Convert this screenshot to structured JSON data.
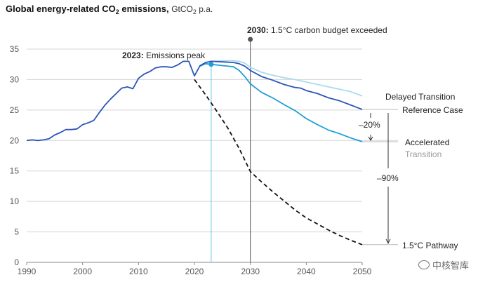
{
  "chart_data": {
    "type": "line",
    "title": "Global energy-related CO",
    "title_sub": "2",
    "title_tail": " emissions,",
    "units_prefix": "GtCO",
    "units_sub": "2",
    "units_tail": " p.a.",
    "xlim": [
      1990,
      2050
    ],
    "ylim": [
      0,
      35
    ],
    "x_ticks": [
      "1990",
      "2000",
      "2010",
      "2020",
      "2030",
      "2040",
      "2050"
    ],
    "y_ticks": [
      "0",
      "5",
      "10",
      "15",
      "20",
      "25",
      "30",
      "35"
    ],
    "grid": "horizontal",
    "historical": {
      "x": [
        1990,
        1991,
        1992,
        1993,
        1994,
        1995,
        1996,
        1997,
        1998,
        1999,
        2000,
        2001,
        2002,
        2003,
        2004,
        2005,
        2006,
        2007,
        2008,
        2009,
        2010,
        2011,
        2012,
        2013,
        2014,
        2015,
        2016,
        2017,
        2018,
        2019,
        2020,
        2021,
        2022
      ],
      "y": [
        20.0,
        20.1,
        20.0,
        20.1,
        20.3,
        20.9,
        21.3,
        21.8,
        21.8,
        21.9,
        22.6,
        22.9,
        23.3,
        24.6,
        25.8,
        26.8,
        27.7,
        28.6,
        28.8,
        28.5,
        30.2,
        30.9,
        31.3,
        31.9,
        32.1,
        32.1,
        32.0,
        32.4,
        33.0,
        33.0,
        30.6,
        32.3,
        32.8
      ]
    },
    "series": [
      {
        "name": "Delayed Transition",
        "color": "#a8dced",
        "x": [
          2022,
          2023,
          2025,
          2027,
          2028,
          2029,
          2030,
          2032,
          2034,
          2036,
          2038,
          2040,
          2042,
          2044,
          2046,
          2048,
          2050
        ],
        "y": [
          32.8,
          33.0,
          33.1,
          33.1,
          33.0,
          32.7,
          32.0,
          31.2,
          30.7,
          30.3,
          30.0,
          29.6,
          29.2,
          28.8,
          28.4,
          28.0,
          27.3
        ]
      },
      {
        "name": "Reference Case",
        "color": "#2a55b8",
        "x": [
          2022,
          2023,
          2025,
          2027,
          2028,
          2029,
          2030,
          2032,
          2034,
          2036,
          2038,
          2039,
          2040,
          2042,
          2044,
          2046,
          2048,
          2050
        ],
        "y": [
          32.8,
          33.0,
          32.9,
          32.8,
          32.6,
          32.2,
          31.5,
          30.5,
          29.9,
          29.2,
          28.7,
          28.6,
          28.2,
          27.7,
          27.0,
          26.5,
          25.8,
          25.1
        ]
      },
      {
        "name": "Accelerated",
        "name_sub": "Transition",
        "color": "#1f9ed6",
        "x": [
          2021,
          2022,
          2023,
          2025,
          2027,
          2028,
          2029,
          2030,
          2032,
          2034,
          2036,
          2038,
          2040,
          2042,
          2044,
          2046,
          2048,
          2050
        ],
        "y": [
          32.2,
          32.6,
          32.5,
          32.3,
          32.1,
          31.5,
          30.5,
          29.3,
          27.9,
          27.0,
          25.9,
          24.9,
          23.6,
          22.6,
          21.7,
          21.1,
          20.4,
          19.8
        ]
      },
      {
        "name": "1.5°C Pathway",
        "color": "#111111",
        "style": "dashed",
        "x": [
          2020,
          2022,
          2024,
          2026,
          2028,
          2030,
          2032,
          2034,
          2036,
          2038,
          2040,
          2042,
          2044,
          2046,
          2048,
          2050
        ],
        "y": [
          30.0,
          27.5,
          24.8,
          22.0,
          18.7,
          14.9,
          13.2,
          11.6,
          10.1,
          8.6,
          7.3,
          6.3,
          5.3,
          4.4,
          3.6,
          2.9
        ]
      }
    ],
    "peak_marker": {
      "x": 2023,
      "y": 32.5
    },
    "budget_marker": {
      "x": 2030,
      "y": 36.6
    },
    "annotations": {
      "peak_bold": "2023:",
      "peak_text": " Emissions peak",
      "budget_bold": "2030:",
      "budget_text": " 1.5°C carbon budget exceeded",
      "reduction_20": "–20%",
      "reduction_90": "–90%"
    },
    "watermark": "中核智库"
  }
}
